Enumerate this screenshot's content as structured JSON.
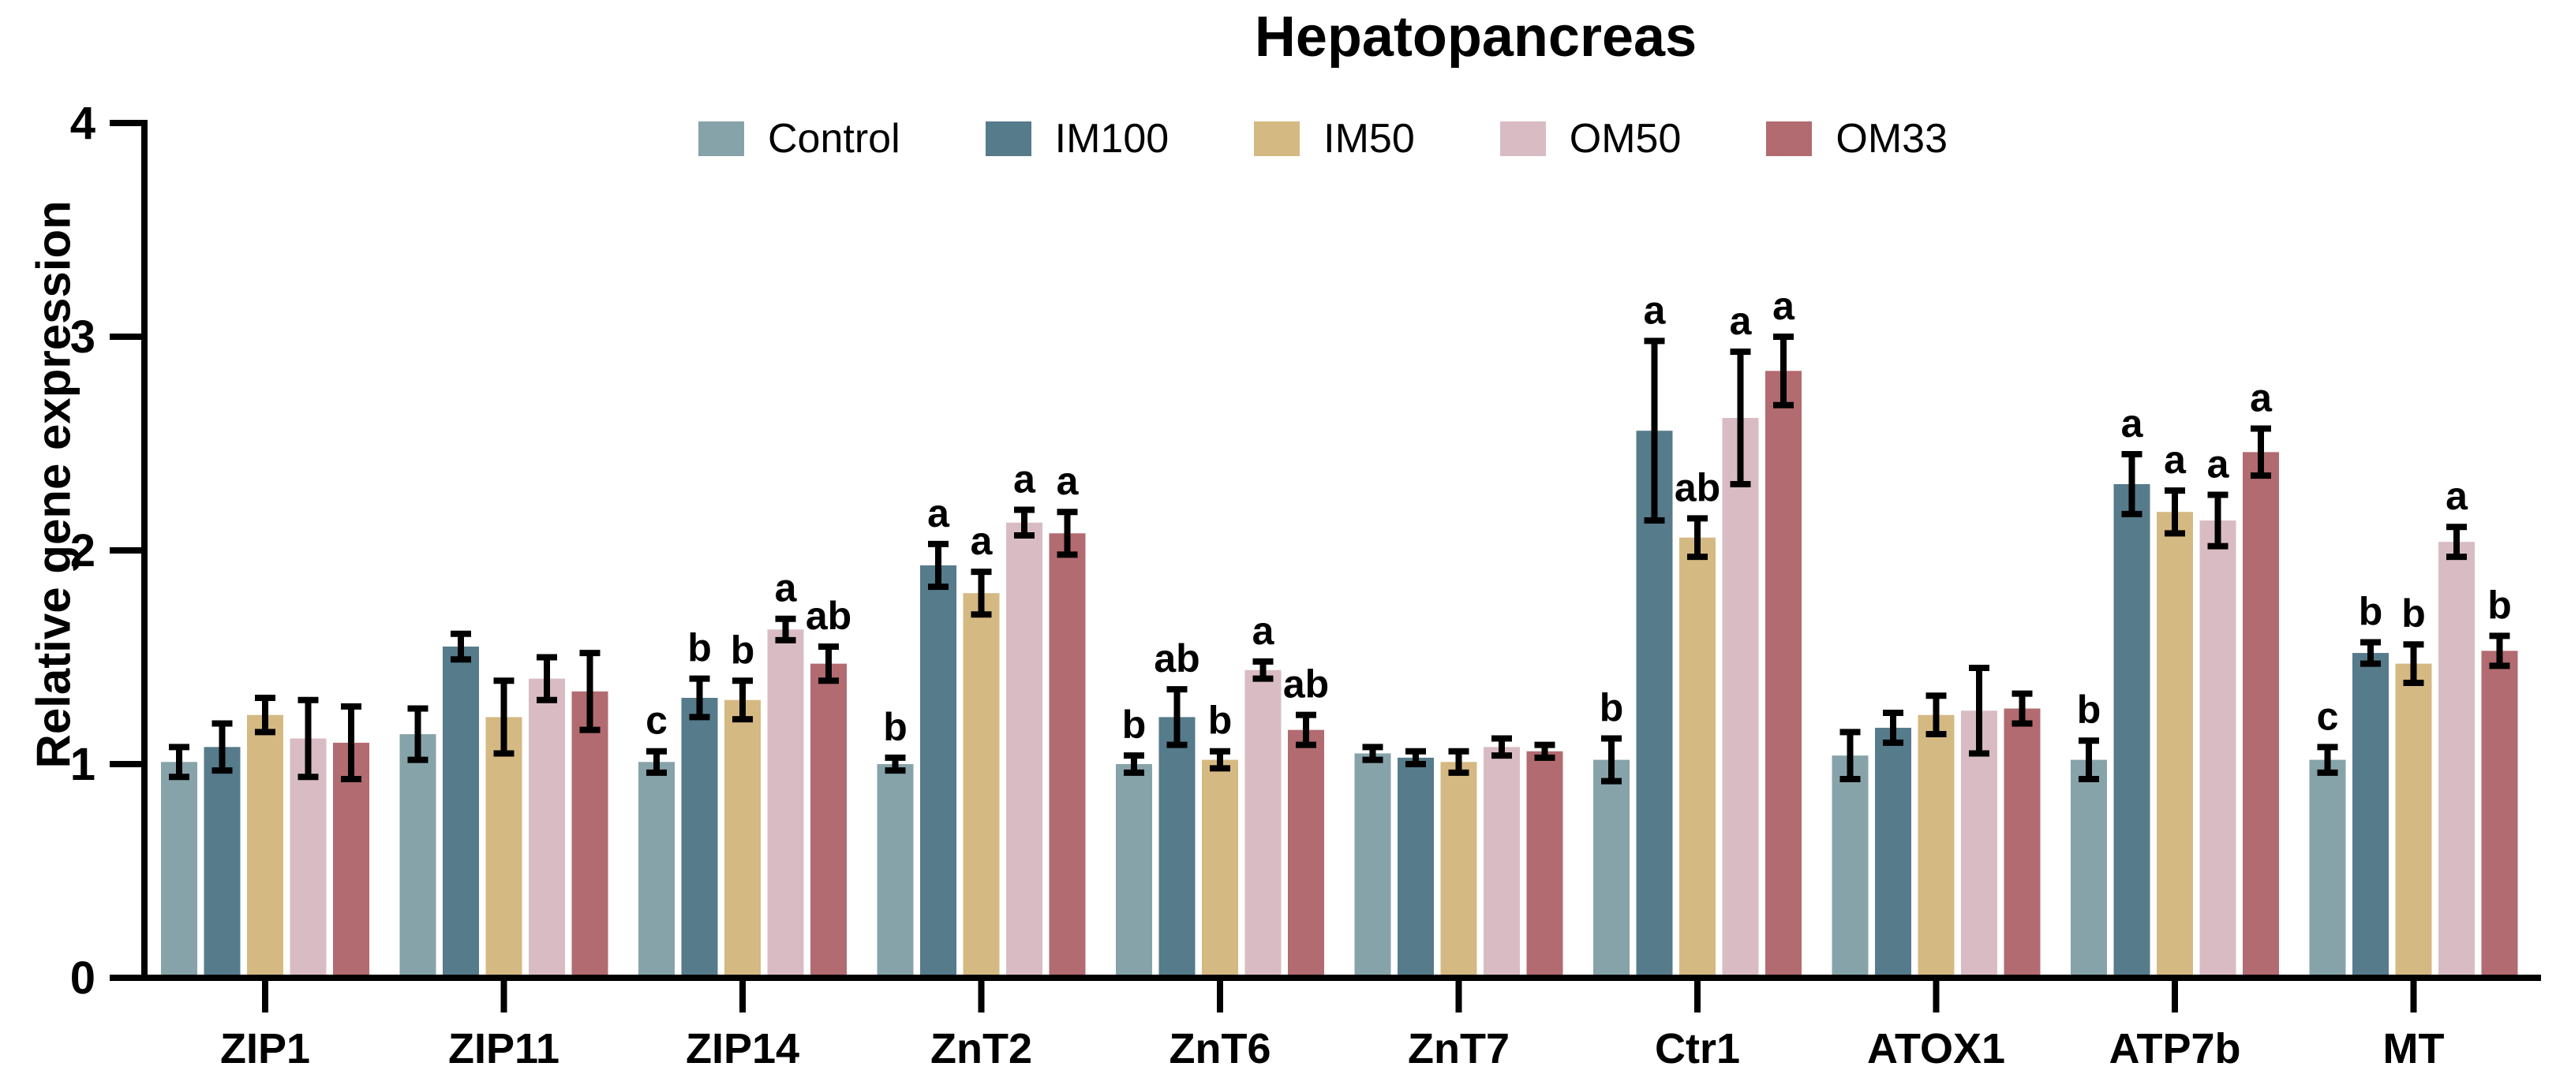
{
  "chart_data": {
    "type": "bar",
    "title": "Hepatopancreas",
    "ylabel": "Relative gene expression",
    "xlabel": "",
    "ylim": [
      0,
      4
    ],
    "yticks": [
      0,
      1,
      2,
      3,
      4
    ],
    "grid": false,
    "legend_position": "top-center",
    "error_bars": "symmetric, black caps",
    "categories": [
      "ZIP1",
      "ZIP11",
      "ZIP14",
      "ZnT2",
      "ZnT6",
      "ZnT7",
      "Ctr1",
      "ATOX1",
      "ATP7b",
      "MT"
    ],
    "series": [
      {
        "name": "Control",
        "color": "#86A3A9",
        "values": [
          1.01,
          1.14,
          1.01,
          1.0,
          1.0,
          1.05,
          1.02,
          1.04,
          1.02,
          1.02
        ],
        "errors": [
          0.07,
          0.12,
          0.05,
          0.03,
          0.04,
          0.03,
          0.1,
          0.11,
          0.09,
          0.06
        ],
        "letters": [
          "",
          "",
          "c",
          "b",
          "b",
          "",
          "b",
          "",
          "b",
          "c"
        ]
      },
      {
        "name": "IM100",
        "color": "#567B8B",
        "values": [
          1.08,
          1.55,
          1.31,
          1.93,
          1.22,
          1.03,
          2.56,
          1.17,
          2.31,
          1.52
        ],
        "errors": [
          0.11,
          0.06,
          0.09,
          0.1,
          0.13,
          0.03,
          0.42,
          0.07,
          0.14,
          0.05
        ],
        "letters": [
          "",
          "",
          "b",
          "a",
          "ab",
          "",
          "a",
          "",
          "a",
          "b"
        ]
      },
      {
        "name": "IM50",
        "color": "#D5B983",
        "values": [
          1.23,
          1.22,
          1.3,
          1.8,
          1.02,
          1.01,
          2.06,
          1.23,
          2.18,
          1.47
        ],
        "errors": [
          0.08,
          0.17,
          0.09,
          0.1,
          0.04,
          0.05,
          0.09,
          0.09,
          0.1,
          0.09
        ],
        "letters": [
          "",
          "",
          "b",
          "a",
          "b",
          "",
          "ab",
          "",
          "a",
          "b"
        ]
      },
      {
        "name": "OM50",
        "color": "#D9BCC3",
        "values": [
          1.12,
          1.4,
          1.63,
          2.13,
          1.44,
          1.08,
          2.62,
          1.25,
          2.14,
          2.04
        ],
        "errors": [
          0.18,
          0.1,
          0.05,
          0.06,
          0.04,
          0.04,
          0.31,
          0.2,
          0.12,
          0.07
        ],
        "letters": [
          "",
          "",
          "a",
          "a",
          "a",
          "",
          "a",
          "",
          "a",
          "a"
        ]
      },
      {
        "name": "OM33",
        "color": "#B26B70",
        "values": [
          1.1,
          1.34,
          1.47,
          2.08,
          1.16,
          1.06,
          2.84,
          1.26,
          2.46,
          1.53
        ],
        "errors": [
          0.17,
          0.18,
          0.08,
          0.1,
          0.07,
          0.03,
          0.16,
          0.07,
          0.11,
          0.07
        ],
        "letters": [
          "",
          "",
          "ab",
          "a",
          "ab",
          "",
          "a",
          "",
          "a",
          "b"
        ]
      }
    ]
  }
}
